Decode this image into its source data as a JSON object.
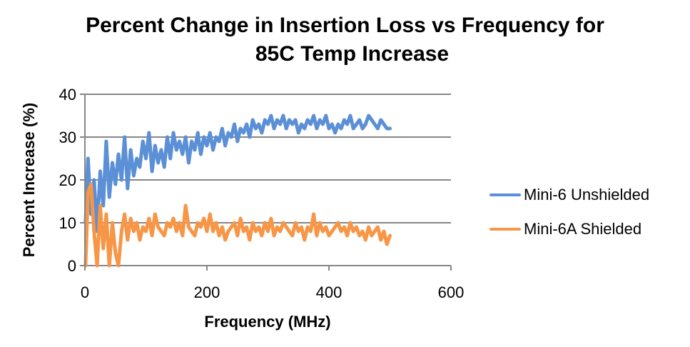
{
  "chart_data": {
    "type": "line",
    "title": "Percent Change in Insertion Loss vs Frequency for 85C Temp Increase",
    "title_lines": [
      "Percent Change in Insertion Loss vs Frequency for",
      "85C Temp Increase"
    ],
    "xlabel": "Frequency (MHz)",
    "ylabel": "Percent Increase (%)",
    "xlim": [
      0,
      600
    ],
    "ylim": [
      0,
      40
    ],
    "xticks": [
      0,
      200,
      400,
      600
    ],
    "yticks": [
      0,
      10,
      20,
      30,
      40
    ],
    "grid": "horizontal",
    "legend_position": "right",
    "x": [
      1,
      5,
      10,
      15,
      20,
      25,
      30,
      35,
      40,
      45,
      50,
      55,
      60,
      65,
      70,
      75,
      80,
      85,
      90,
      95,
      100,
      105,
      110,
      115,
      120,
      125,
      130,
      135,
      140,
      145,
      150,
      155,
      160,
      165,
      170,
      175,
      180,
      185,
      190,
      195,
      200,
      205,
      210,
      215,
      220,
      225,
      230,
      235,
      240,
      245,
      250,
      255,
      260,
      265,
      270,
      275,
      280,
      285,
      290,
      295,
      300,
      305,
      310,
      315,
      320,
      325,
      330,
      335,
      340,
      345,
      350,
      355,
      360,
      365,
      370,
      375,
      380,
      385,
      390,
      395,
      400,
      405,
      410,
      415,
      420,
      425,
      430,
      435,
      440,
      445,
      450,
      455,
      460,
      465,
      470,
      475,
      480,
      485,
      490,
      495,
      500
    ],
    "series": [
      {
        "name": "Mini-6 Unshielded",
        "color": "#5B8FD6",
        "values": [
          10,
          25,
          12,
          20,
          8,
          22,
          14,
          29,
          16,
          24,
          19,
          26,
          20,
          30,
          18,
          27,
          21,
          25,
          23,
          29,
          25,
          31,
          22,
          28,
          24,
          27,
          23,
          30,
          25,
          31,
          27,
          29,
          26,
          30,
          24,
          29,
          27,
          31,
          26,
          30,
          28,
          31,
          27,
          30,
          29,
          32,
          28,
          31,
          30,
          33,
          29,
          32,
          31,
          33,
          30,
          34,
          32,
          33,
          31,
          34,
          33,
          35,
          32,
          34,
          33,
          35,
          32,
          34,
          33,
          34,
          31,
          33,
          32,
          34,
          33,
          35,
          32,
          34,
          33,
          35,
          32,
          33,
          31,
          33,
          32,
          34,
          33,
          35,
          32,
          33,
          34,
          32,
          33,
          35,
          34,
          33,
          32,
          34,
          33,
          32,
          32
        ],
        "ylabel_hint": ""
      },
      {
        "name": "Mini-6A Shielded",
        "color": "#F79646",
        "values": [
          0,
          17,
          19,
          8,
          0,
          14,
          4,
          12,
          0,
          10,
          3,
          0,
          8,
          12,
          6,
          11,
          8,
          10,
          6,
          9,
          8,
          11,
          7,
          12,
          9,
          8,
          7,
          10,
          9,
          11,
          8,
          10,
          7,
          14,
          9,
          8,
          7,
          10,
          9,
          11,
          8,
          12,
          8,
          10,
          7,
          9,
          6,
          8,
          9,
          10,
          7,
          11,
          8,
          9,
          6,
          10,
          8,
          9,
          7,
          10,
          8,
          11,
          7,
          9,
          8,
          10,
          9,
          8,
          7,
          10,
          8,
          9,
          6,
          9,
          8,
          12,
          7,
          10,
          8,
          9,
          7,
          8,
          9,
          10,
          8,
          9,
          7,
          10,
          8,
          9,
          7,
          8,
          6,
          9,
          7,
          8,
          9,
          6,
          8,
          5,
          7
        ]
      }
    ]
  }
}
